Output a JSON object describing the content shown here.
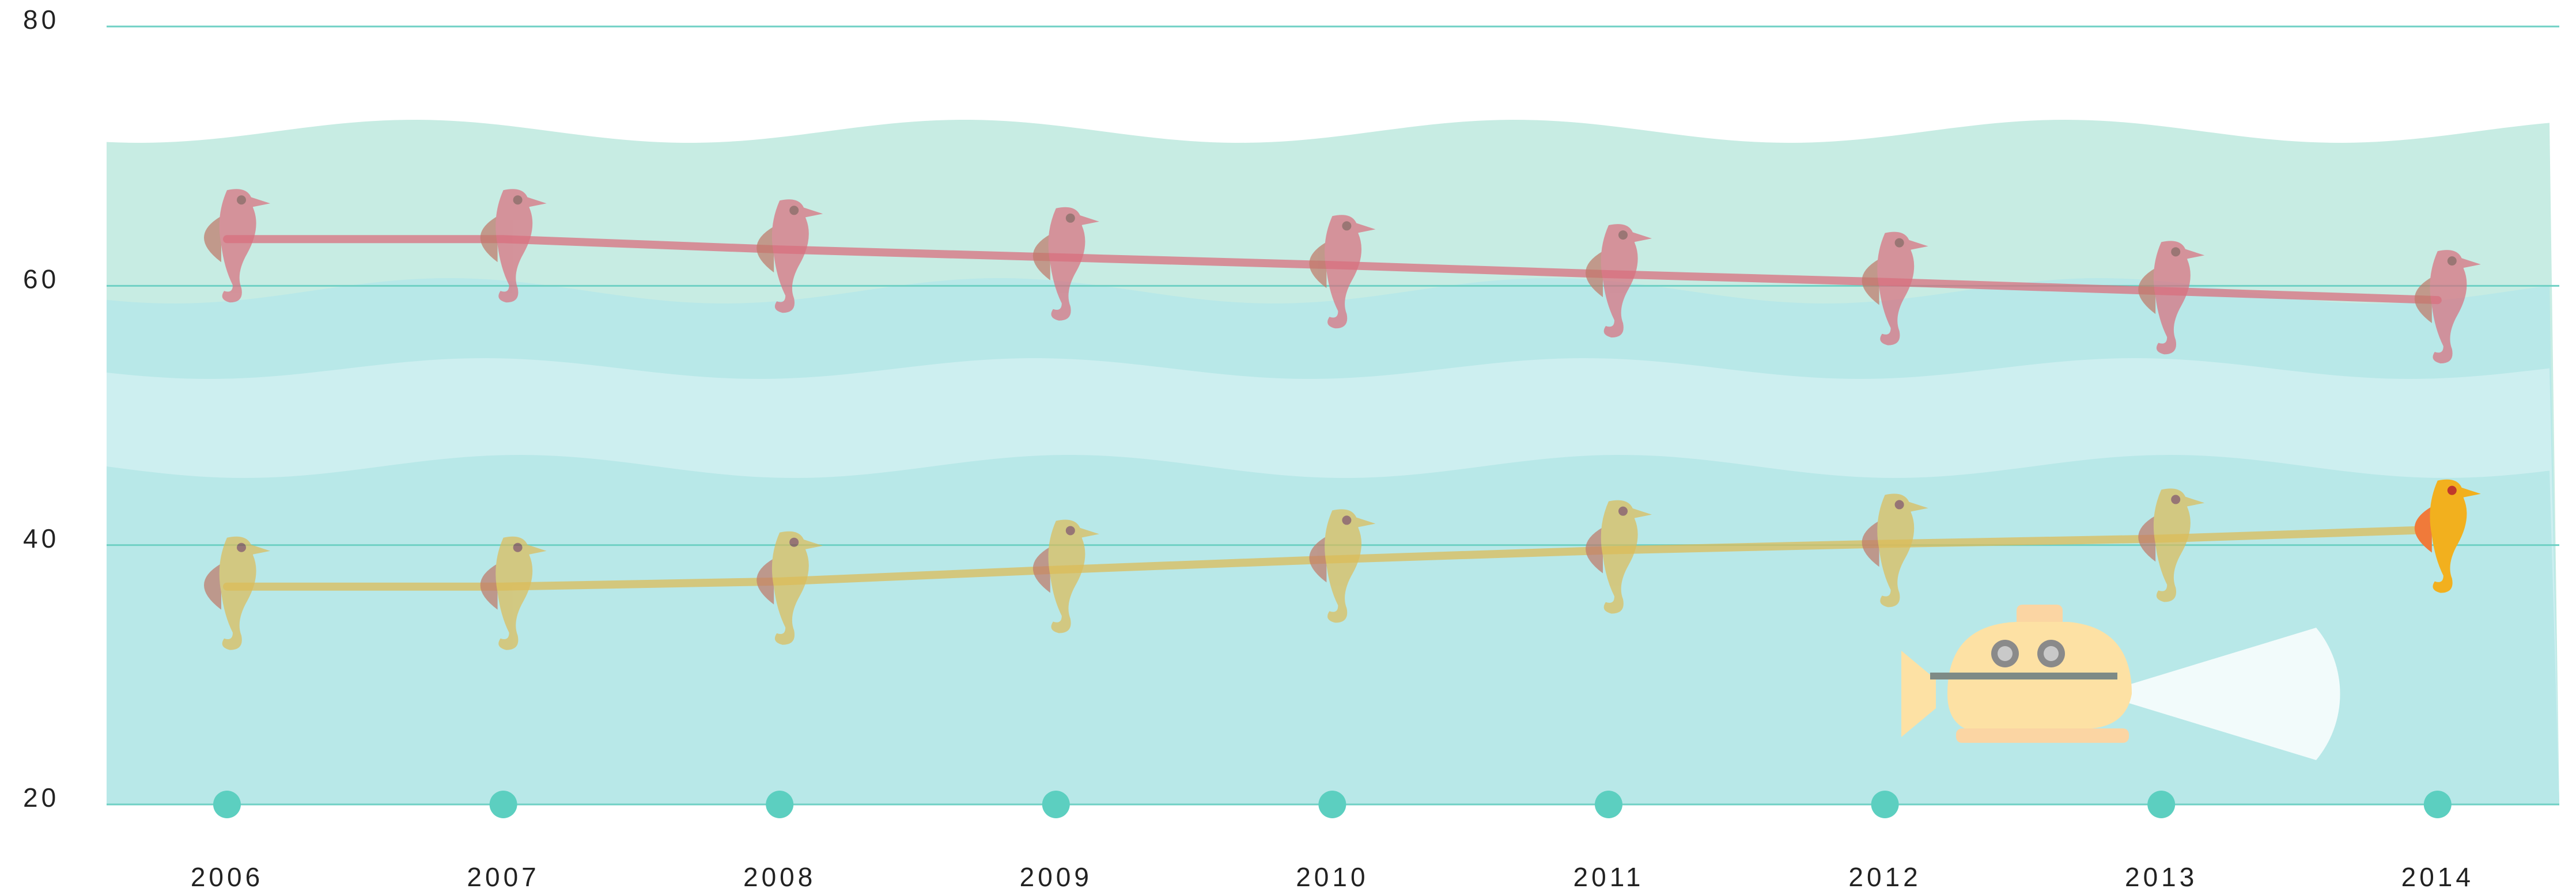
{
  "chart_data": {
    "type": "line",
    "categories": [
      "2006",
      "2007",
      "2008",
      "2009",
      "2010",
      "2011",
      "2012",
      "2013",
      "2014"
    ],
    "series": [
      {
        "color": "#d9707f",
        "values": [
          63.6,
          63.6,
          62.8,
          62.2,
          61.6,
          60.9,
          60.3,
          59.6,
          58.9
        ]
      },
      {
        "color": "#dcbc5a",
        "values": [
          36.8,
          36.8,
          37.2,
          38.1,
          38.9,
          39.6,
          40.1,
          40.5,
          41.2
        ]
      }
    ],
    "ylim": [
      20,
      80
    ],
    "yticks": [
      20,
      40,
      60,
      80
    ],
    "grid": true
  }
}
